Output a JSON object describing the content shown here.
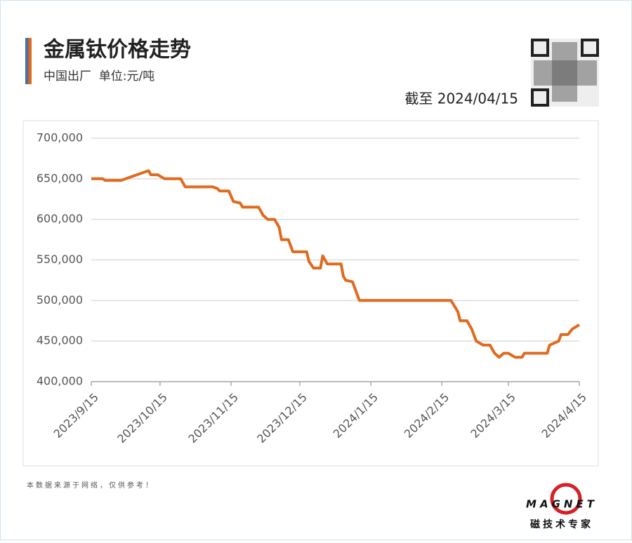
{
  "chart_data": {
    "type": "line",
    "title": "金属钛价格走势",
    "subtitle": "中国出厂  单位:元/吨",
    "date_note": "截至 2024/04/15",
    "source_note": "本数据来源于网络，仅供参考！",
    "logo_text": "MAGNET",
    "logo_caption": "磁技术专家",
    "x": [
      "2023/9/15",
      "2023/9/20",
      "2023/9/21",
      "2023/9/28",
      "2023/10/10",
      "2023/10/11",
      "2023/10/14",
      "2023/10/17",
      "2023/10/24",
      "2023/10/25",
      "2023/10/26",
      "2023/11/7",
      "2023/11/9",
      "2023/11/10",
      "2023/11/14",
      "2023/11/16",
      "2023/11/19",
      "2023/11/20",
      "2023/11/27",
      "2023/11/29",
      "2023/12/1",
      "2023/12/4",
      "2023/12/6",
      "2023/12/7",
      "2023/12/10",
      "2023/12/12",
      "2023/12/18",
      "2023/12/19",
      "2023/12/21",
      "2023/12/24",
      "2023/12/25",
      "2023/12/27",
      "2024/1/2",
      "2024/1/3",
      "2024/1/4",
      "2024/1/7",
      "2024/1/10",
      "2024/2/19",
      "2024/2/22",
      "2024/2/23",
      "2024/2/26",
      "2024/2/28",
      "2024/3/1",
      "2024/3/4",
      "2024/3/7",
      "2024/3/9",
      "2024/3/11",
      "2024/3/13",
      "2024/3/15",
      "2024/3/18",
      "2024/3/21",
      "2024/3/22",
      "2024/4/1",
      "2024/4/2",
      "2024/4/6",
      "2024/4/7",
      "2024/4/10",
      "2024/4/12",
      "2024/4/15"
    ],
    "series": [
      {
        "color": "#e06a1e",
        "values": [
          650000,
          650000,
          648000,
          648000,
          660000,
          655000,
          655000,
          650000,
          650000,
          645000,
          640000,
          640000,
          638000,
          635000,
          635000,
          622000,
          620000,
          615000,
          615000,
          605000,
          600000,
          600000,
          590000,
          575000,
          575000,
          560000,
          560000,
          548000,
          540000,
          540000,
          555000,
          545000,
          545000,
          530000,
          525000,
          523000,
          500000,
          500000,
          486000,
          475000,
          475000,
          465000,
          450000,
          445000,
          445000,
          435000,
          430000,
          435000,
          435000,
          430000,
          430000,
          435000,
          435000,
          445000,
          450000,
          458000,
          458000,
          465000,
          470000
        ]
      }
    ],
    "xlim": [
      "2023/9/15",
      "2024/4/15"
    ],
    "xticks": [
      "2023/9/15",
      "2023/10/15",
      "2023/11/15",
      "2023/12/15",
      "2024/1/15",
      "2024/2/15",
      "2024/3/15",
      "2024/4/15"
    ],
    "ylim": [
      400000,
      700000
    ],
    "yticks": [
      {
        "value": 400000,
        "label": "400,000"
      },
      {
        "value": 450000,
        "label": "450,000"
      },
      {
        "value": 500000,
        "label": "500,000"
      },
      {
        "value": 550000,
        "label": "550,000"
      },
      {
        "value": 600000,
        "label": "600,000"
      },
      {
        "value": 650000,
        "label": "650,000"
      },
      {
        "value": 700000,
        "label": "700,000"
      }
    ],
    "grid": true
  }
}
